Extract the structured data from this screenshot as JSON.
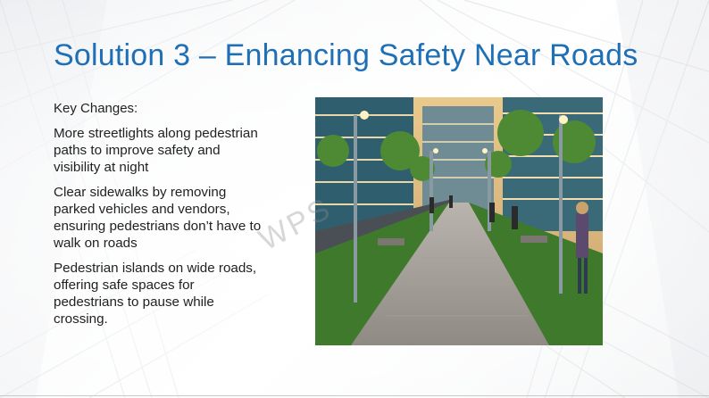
{
  "slide": {
    "title": "Solution 3 – Enhancing Safety Near Roads",
    "key_heading": "Key Changes:",
    "bullets": [
      "More streetlights along pedestrian paths to improve safety and visibility at night",
      "Clear sidewalks by removing parked vehicles and vendors, ensuring pedestrians don’t have to walk on roads",
      "Pedestrian islands on wide roads, offering safe spaces for pedestrians to pause while crossing."
    ],
    "watermark": "WPS"
  },
  "colors": {
    "title": "#1f6fb7",
    "text": "#222222",
    "background": "#f4f5f6"
  },
  "icons": {
    "photo": "pedestrian-street-photo"
  }
}
